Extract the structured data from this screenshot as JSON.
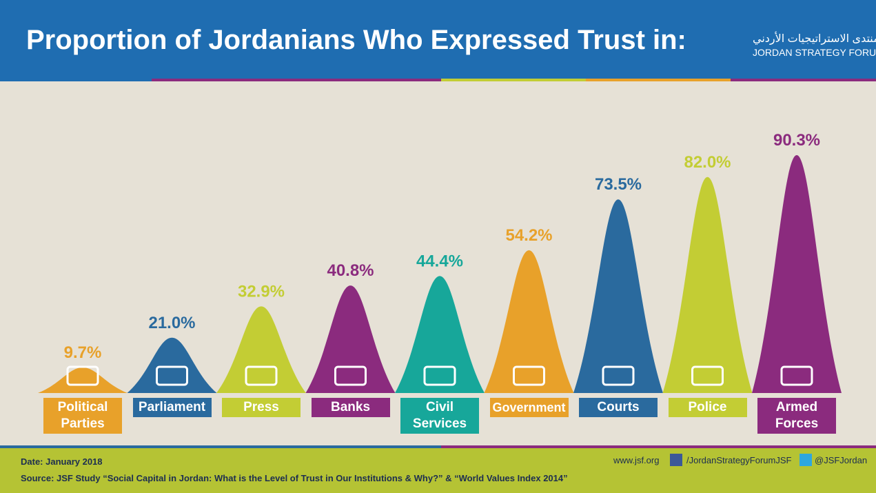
{
  "chart_data": {
    "type": "peak",
    "title": "Proportion of Jordanians Who Expressed Trust in:",
    "logo_arabic": "منتدى الاستراتيجيات الأردني",
    "logo_english": "JORDAN STRATEGY FORUM",
    "categories": [
      "Political Parties",
      "Parliament",
      "Press",
      "Banks",
      "Civil Services",
      "Government",
      "Courts",
      "Police",
      "Armed Forces"
    ],
    "values": [
      9.7,
      21.0,
      32.9,
      40.8,
      44.4,
      54.2,
      73.5,
      82.0,
      90.3
    ],
    "value_labels": [
      "9.7%",
      "21.0%",
      "32.9%",
      "40.8%",
      "44.4%",
      "54.2%",
      "73.5%",
      "82.0%",
      "90.3%"
    ],
    "colors": [
      "#e8a12a",
      "#2a6a9e",
      "#c3cd34",
      "#8b2b7e",
      "#17a79a",
      "#e8a12a",
      "#2a6a9e",
      "#c3cd34",
      "#8b2b7e"
    ],
    "date": "Date: January 2018",
    "source": "Source: JSF Study “Social Capital in Jordan: What is the Level of Trust in Our Institutions & Why?” & “World Values Index 2014”",
    "website": "www.jsf.org",
    "facebook": "/JordanStrategyForumJSF",
    "twitter": "@JSFJordan"
  }
}
